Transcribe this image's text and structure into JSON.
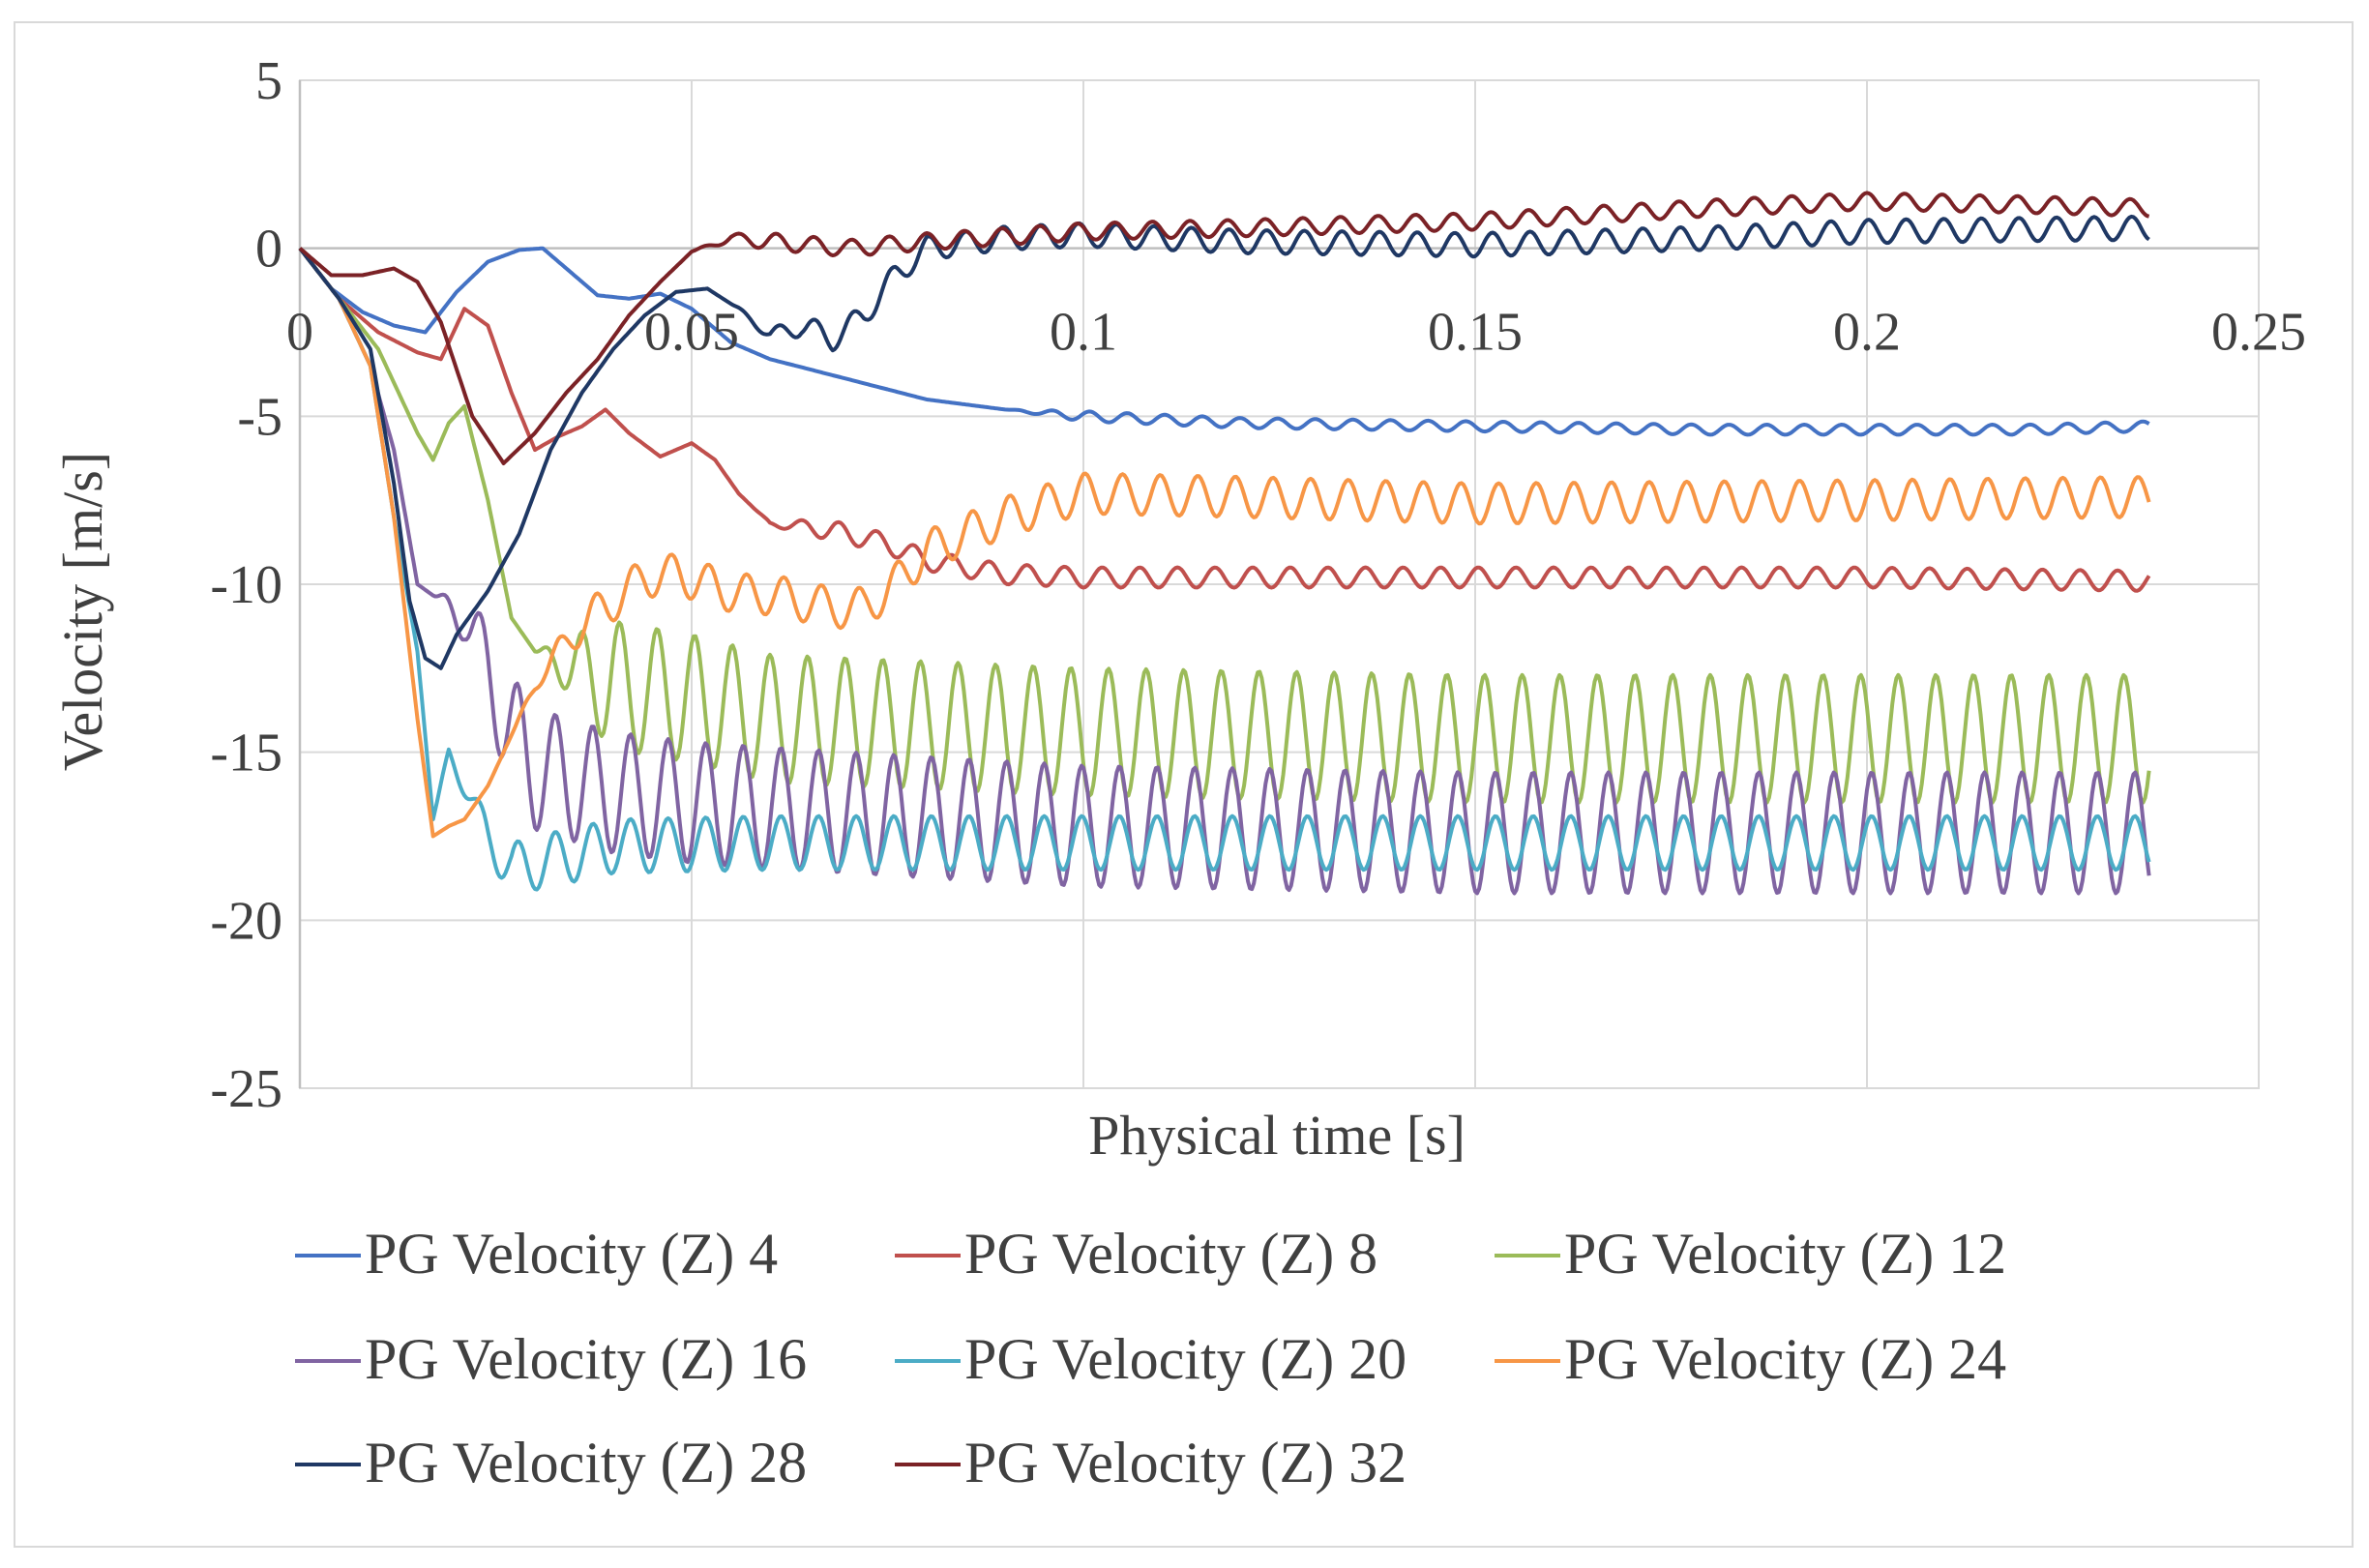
{
  "chart_data": {
    "type": "line",
    "title": "",
    "xlabel": "Physical time [s]",
    "ylabel": "Velocity [m/s]",
    "xlim": [
      0,
      0.25
    ],
    "ylim": [
      -25,
      5
    ],
    "x_ticks": [
      0,
      0.05,
      0.1,
      0.15,
      0.2,
      0.25
    ],
    "x_tick_labels": [
      "0",
      "0.05",
      "0.1",
      "0.15",
      "0.2",
      "0.25"
    ],
    "y_ticks": [
      5,
      0,
      -5,
      -10,
      -15,
      -20,
      -25
    ],
    "y_tick_labels": [
      "5",
      "0",
      "-5",
      "-10",
      "-15",
      "-20",
      "-25"
    ],
    "grid": true,
    "legend_position": "bottom",
    "series": [
      {
        "name": "PG Velocity (Z) 4",
        "color": "#4472C4",
        "x": [
          0,
          0.004,
          0.008,
          0.012,
          0.016,
          0.02,
          0.024,
          0.028,
          0.031,
          0.034,
          0.038,
          0.042,
          0.046,
          0.05,
          0.055,
          0.06,
          0.065,
          0.07,
          0.08,
          0.09,
          0.1,
          0.12,
          0.15,
          0.18,
          0.2,
          0.22,
          0.236
        ],
        "y": [
          0,
          -1.2,
          -1.9,
          -2.3,
          -2.5,
          -1.3,
          -0.4,
          -0.05,
          0,
          -0.6,
          -1.4,
          -1.5,
          -1.35,
          -1.8,
          -2.8,
          -3.3,
          -3.6,
          -3.9,
          -4.5,
          -4.8,
          -5.0,
          -5.2,
          -5.3,
          -5.4,
          -5.4,
          -5.4,
          -5.3
        ],
        "osc_start": 0.09,
        "osc_period": 0.0048,
        "osc_amp": 0.15
      },
      {
        "name": "PG Velocity (Z) 8",
        "color": "#C0504D",
        "x": [
          0,
          0.005,
          0.01,
          0.015,
          0.018,
          0.021,
          0.024,
          0.027,
          0.03,
          0.033,
          0.036,
          0.039,
          0.042,
          0.046,
          0.05,
          0.053,
          0.056,
          0.06,
          0.065,
          0.07,
          0.075,
          0.08,
          0.09,
          0.1,
          0.12,
          0.15,
          0.2,
          0.236
        ],
        "y": [
          0,
          -1.5,
          -2.5,
          -3.1,
          -3.3,
          -1.8,
          -2.3,
          -4.3,
          -6.0,
          -5.6,
          -5.3,
          -4.8,
          -5.5,
          -6.2,
          -5.8,
          -6.3,
          -7.3,
          -8.2,
          -8.3,
          -8.5,
          -8.8,
          -9.3,
          -9.7,
          -9.8,
          -9.8,
          -9.8,
          -9.8,
          -9.9
        ],
        "osc_start": 0.058,
        "osc_period": 0.0048,
        "osc_amp": 0.3
      },
      {
        "name": "PG Velocity (Z) 12",
        "color": "#9BBB59",
        "x": [
          0,
          0.005,
          0.01,
          0.015,
          0.017,
          0.019,
          0.021,
          0.024,
          0.027,
          0.03,
          0.035,
          0.04,
          0.05,
          0.06,
          0.08,
          0.1,
          0.15,
          0.2,
          0.236
        ],
        "y": [
          0,
          -1.5,
          -3.0,
          -5.5,
          -6.3,
          -5.2,
          -4.7,
          -7.5,
          -11.0,
          -12.0,
          -12.5,
          -13.0,
          -13.4,
          -14.0,
          -14.2,
          -14.4,
          -14.6,
          -14.6,
          -14.6
        ],
        "osc_start": 0.03,
        "osc_period": 0.0048,
        "osc_amp": 1.9
      },
      {
        "name": "PG Velocity (Z) 16",
        "color": "#8064A2",
        "x": [
          0,
          0.005,
          0.009,
          0.012,
          0.015,
          0.018,
          0.021,
          0.024,
          0.027,
          0.03,
          0.04,
          0.05,
          0.07,
          0.1,
          0.15,
          0.2,
          0.236
        ],
        "y": [
          0,
          -1.5,
          -3.5,
          -6.0,
          -10.0,
          -10.5,
          -11.0,
          -12.5,
          -14.5,
          -15.5,
          -16.2,
          -16.5,
          -16.8,
          -17.2,
          -17.4,
          -17.4,
          -17.4
        ],
        "osc_start": 0.017,
        "osc_period": 0.0048,
        "osc_amp": 1.8
      },
      {
        "name": "PG Velocity (Z) 20",
        "color": "#4BACC6",
        "x": [
          0,
          0.005,
          0.009,
          0.012,
          0.015,
          0.017,
          0.019,
          0.021,
          0.024,
          0.027,
          0.03,
          0.04,
          0.06,
          0.1,
          0.15,
          0.2,
          0.236
        ],
        "y": [
          0,
          -1.5,
          -3.5,
          -8.0,
          -12.0,
          -17.0,
          -15.0,
          -16.0,
          -17.5,
          -18.5,
          -18.3,
          -17.8,
          -17.7,
          -17.7,
          -17.7,
          -17.7,
          -17.7
        ],
        "osc_start": 0.017,
        "osc_period": 0.0048,
        "osc_amp": 0.8
      },
      {
        "name": "PG Velocity (Z) 24",
        "color": "#F79646",
        "x": [
          0,
          0.005,
          0.009,
          0.012,
          0.015,
          0.017,
          0.019,
          0.021,
          0.024,
          0.027,
          0.03,
          0.033,
          0.036,
          0.04,
          0.044,
          0.048,
          0.052,
          0.056,
          0.06,
          0.064,
          0.068,
          0.072,
          0.076,
          0.08,
          0.085,
          0.09,
          0.1,
          0.12,
          0.15,
          0.2,
          0.236
        ],
        "y": [
          0,
          -1.5,
          -3.5,
          -8.0,
          -14.0,
          -17.5,
          -17.2,
          -17.0,
          -16.0,
          -14.5,
          -13.0,
          -12.0,
          -11.2,
          -10.5,
          -9.8,
          -9.7,
          -10.0,
          -10.3,
          -10.3,
          -10.5,
          -10.7,
          -10.7,
          -10.0,
          -9.0,
          -8.5,
          -8.0,
          -7.3,
          -7.4,
          -7.6,
          -7.5,
          -7.4
        ],
        "osc_start": 0.027,
        "osc_period": 0.0048,
        "osc_amp": 0.6
      },
      {
        "name": "PG Velocity (Z) 28",
        "color": "#1F3864",
        "x": [
          0,
          0.005,
          0.009,
          0.012,
          0.014,
          0.016,
          0.018,
          0.02,
          0.024,
          0.028,
          0.032,
          0.036,
          0.04,
          0.044,
          0.048,
          0.052,
          0.056,
          0.06,
          0.064,
          0.068,
          0.072,
          0.076,
          0.08,
          0.09,
          0.1,
          0.12,
          0.15,
          0.18,
          0.2,
          0.236
        ],
        "y": [
          0,
          -1.5,
          -3.0,
          -7.0,
          -10.5,
          -12.2,
          -12.5,
          -11.5,
          -10.2,
          -8.5,
          -6.0,
          -4.3,
          -3.0,
          -2.0,
          -1.3,
          -1.2,
          -1.8,
          -2.6,
          -2.3,
          -2.7,
          -2.0,
          -0.8,
          0.0,
          0.3,
          0.4,
          0.2,
          0.1,
          0.3,
          0.5,
          0.6
        ],
        "osc_start": 0.055,
        "osc_period": 0.0048,
        "osc_amp": 0.35
      },
      {
        "name": "PG Velocity (Z) 32",
        "color": "#7B2226",
        "x": [
          0,
          0.004,
          0.008,
          0.012,
          0.015,
          0.018,
          0.022,
          0.026,
          0.03,
          0.034,
          0.038,
          0.042,
          0.046,
          0.05,
          0.055,
          0.06,
          0.07,
          0.08,
          0.1,
          0.12,
          0.15,
          0.18,
          0.2,
          0.22,
          0.236
        ],
        "y": [
          0,
          -0.8,
          -0.8,
          -0.6,
          -1.0,
          -2.2,
          -5.0,
          -6.4,
          -5.5,
          -4.3,
          -3.3,
          -2.0,
          -1.0,
          -0.1,
          0.3,
          0.2,
          0.0,
          0.2,
          0.5,
          0.6,
          0.8,
          1.2,
          1.4,
          1.3,
          1.2
        ],
        "osc_start": 0.05,
        "osc_period": 0.0048,
        "osc_amp": 0.25
      }
    ]
  }
}
